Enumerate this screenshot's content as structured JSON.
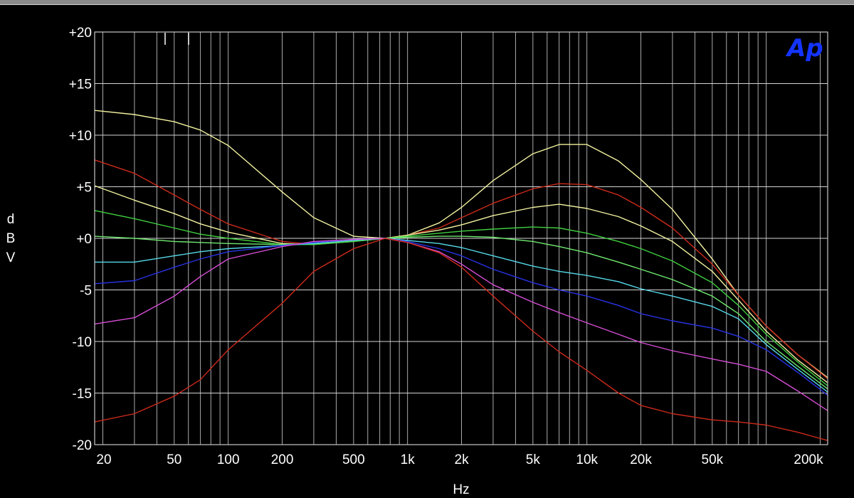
{
  "chart_data": {
    "type": "line",
    "xscale": "log",
    "x_range": [
      18,
      220000
    ],
    "y_range": [
      -20,
      20
    ],
    "grid": true,
    "xlabel": "Hz",
    "ylabel": [
      "d",
      "B",
      "V"
    ],
    "yticks": [
      {
        "v": 20,
        "label": "+20"
      },
      {
        "v": 15,
        "label": "+15"
      },
      {
        "v": 10,
        "label": "+10"
      },
      {
        "v": 5,
        "label": "+5"
      },
      {
        "v": 0,
        "label": "+0"
      },
      {
        "v": -5,
        "label": "-5"
      },
      {
        "v": -10,
        "label": "-10"
      },
      {
        "v": -15,
        "label": "-15"
      },
      {
        "v": -20,
        "label": "-20"
      }
    ],
    "xticks": [
      {
        "v": 20,
        "label": "20"
      },
      {
        "v": 50,
        "label": "50"
      },
      {
        "v": 100,
        "label": "100"
      },
      {
        "v": 200,
        "label": "200"
      },
      {
        "v": 500,
        "label": "500"
      },
      {
        "v": 1000,
        "label": "1k"
      },
      {
        "v": 2000,
        "label": "2k"
      },
      {
        "v": 5000,
        "label": "5k"
      },
      {
        "v": 10000,
        "label": "10k"
      },
      {
        "v": 20000,
        "label": "20k"
      },
      {
        "v": 50000,
        "label": "50k"
      },
      {
        "v": 200000,
        "label": "200k"
      }
    ],
    "logo": "Ap",
    "series": [
      {
        "color": "#f2f2a0",
        "points": [
          [
            18,
            12.4
          ],
          [
            30,
            12.0
          ],
          [
            50,
            11.3
          ],
          [
            70,
            10.5
          ],
          [
            100,
            9.0
          ],
          [
            200,
            4.5
          ],
          [
            300,
            2.0
          ],
          [
            500,
            0.2
          ],
          [
            750,
            0
          ],
          [
            1000,
            0.3
          ],
          [
            1500,
            1.5
          ],
          [
            2000,
            3.0
          ],
          [
            3000,
            5.6
          ],
          [
            5000,
            8.2
          ],
          [
            7000,
            9.1
          ],
          [
            10000,
            9.1
          ],
          [
            15000,
            7.5
          ],
          [
            20000,
            5.7
          ],
          [
            30000,
            2.8
          ],
          [
            50000,
            -2.0
          ],
          [
            70000,
            -5.5
          ],
          [
            100000,
            -8.5
          ],
          [
            150000,
            -11.3
          ],
          [
            220000,
            -13.5
          ]
        ]
      },
      {
        "color": "#cc2a1a",
        "points": [
          [
            18,
            7.6
          ],
          [
            30,
            6.3
          ],
          [
            50,
            4.2
          ],
          [
            70,
            2.8
          ],
          [
            100,
            1.4
          ],
          [
            200,
            -0.3
          ],
          [
            300,
            -0.6
          ],
          [
            500,
            -0.2
          ],
          [
            750,
            0
          ],
          [
            1000,
            0.3
          ],
          [
            1500,
            1.0
          ],
          [
            2000,
            2.0
          ],
          [
            3000,
            3.4
          ],
          [
            5000,
            4.8
          ],
          [
            7000,
            5.3
          ],
          [
            10000,
            5.2
          ],
          [
            15000,
            4.2
          ],
          [
            20000,
            3.0
          ],
          [
            30000,
            1.0
          ],
          [
            50000,
            -2.5
          ],
          [
            70000,
            -5.5
          ],
          [
            100000,
            -8.5
          ],
          [
            150000,
            -11.3
          ],
          [
            220000,
            -13.6
          ]
        ]
      },
      {
        "color": "#f2f2a0",
        "points": [
          [
            18,
            5.1
          ],
          [
            30,
            3.7
          ],
          [
            50,
            2.4
          ],
          [
            70,
            1.4
          ],
          [
            100,
            0.6
          ],
          [
            200,
            -0.5
          ],
          [
            300,
            -0.6
          ],
          [
            500,
            -0.3
          ],
          [
            750,
            0
          ],
          [
            1000,
            0.3
          ],
          [
            1500,
            0.8
          ],
          [
            2000,
            1.3
          ],
          [
            3000,
            2.2
          ],
          [
            5000,
            3.0
          ],
          [
            7000,
            3.3
          ],
          [
            10000,
            2.9
          ],
          [
            15000,
            2.1
          ],
          [
            20000,
            1.2
          ],
          [
            30000,
            -0.3
          ],
          [
            50000,
            -3.2
          ],
          [
            70000,
            -6.0
          ],
          [
            100000,
            -9.0
          ],
          [
            150000,
            -11.8
          ],
          [
            220000,
            -14.0
          ]
        ]
      },
      {
        "color": "#3fcf3f",
        "points": [
          [
            18,
            2.7
          ],
          [
            30,
            1.9
          ],
          [
            50,
            1.0
          ],
          [
            70,
            0.4
          ],
          [
            100,
            0
          ],
          [
            200,
            -0.6
          ],
          [
            300,
            -0.6
          ],
          [
            500,
            -0.3
          ],
          [
            750,
            0
          ],
          [
            1000,
            0.2
          ],
          [
            1500,
            0.5
          ],
          [
            2000,
            0.7
          ],
          [
            3000,
            0.9
          ],
          [
            5000,
            1.1
          ],
          [
            7000,
            1.0
          ],
          [
            10000,
            0.5
          ],
          [
            15000,
            -0.3
          ],
          [
            20000,
            -1.0
          ],
          [
            30000,
            -2.2
          ],
          [
            50000,
            -4.3
          ],
          [
            70000,
            -6.5
          ],
          [
            100000,
            -9.3
          ],
          [
            150000,
            -12.0
          ],
          [
            220000,
            -14.3
          ]
        ]
      },
      {
        "color": "#6ee86e",
        "points": [
          [
            18,
            0.2
          ],
          [
            30,
            0
          ],
          [
            50,
            -0.3
          ],
          [
            70,
            -0.4
          ],
          [
            100,
            -0.5
          ],
          [
            200,
            -0.6
          ],
          [
            300,
            -0.5
          ],
          [
            500,
            -0.2
          ],
          [
            750,
            0
          ],
          [
            1000,
            0.1
          ],
          [
            1500,
            0.2
          ],
          [
            2000,
            0.2
          ],
          [
            3000,
            0.1
          ],
          [
            5000,
            -0.3
          ],
          [
            7000,
            -0.8
          ],
          [
            10000,
            -1.4
          ],
          [
            15000,
            -2.3
          ],
          [
            20000,
            -3.0
          ],
          [
            30000,
            -4.0
          ],
          [
            50000,
            -5.6
          ],
          [
            70000,
            -7.3
          ],
          [
            100000,
            -10.0
          ],
          [
            150000,
            -12.4
          ],
          [
            220000,
            -14.6
          ]
        ]
      },
      {
        "color": "#55d8e8",
        "points": [
          [
            18,
            -2.3
          ],
          [
            30,
            -2.3
          ],
          [
            50,
            -1.7
          ],
          [
            70,
            -1.3
          ],
          [
            100,
            -1.0
          ],
          [
            200,
            -0.7
          ],
          [
            300,
            -0.5
          ],
          [
            500,
            -0.2
          ],
          [
            750,
            0
          ],
          [
            1000,
            -0.2
          ],
          [
            1500,
            -0.5
          ],
          [
            2000,
            -0.9
          ],
          [
            3000,
            -1.7
          ],
          [
            5000,
            -2.7
          ],
          [
            7000,
            -3.2
          ],
          [
            10000,
            -3.6
          ],
          [
            15000,
            -4.2
          ],
          [
            20000,
            -4.9
          ],
          [
            30000,
            -5.6
          ],
          [
            50000,
            -6.6
          ],
          [
            70000,
            -7.8
          ],
          [
            100000,
            -10.3
          ],
          [
            150000,
            -12.7
          ],
          [
            220000,
            -14.9
          ]
        ]
      },
      {
        "color": "#2833e6",
        "points": [
          [
            18,
            -4.4
          ],
          [
            30,
            -4.1
          ],
          [
            50,
            -2.8
          ],
          [
            70,
            -2.0
          ],
          [
            100,
            -1.3
          ],
          [
            200,
            -0.7
          ],
          [
            300,
            -0.4
          ],
          [
            500,
            -0.1
          ],
          [
            750,
            0
          ],
          [
            1000,
            -0.3
          ],
          [
            1500,
            -1.0
          ],
          [
            2000,
            -1.7
          ],
          [
            3000,
            -3.0
          ],
          [
            5000,
            -4.3
          ],
          [
            7000,
            -5.0
          ],
          [
            10000,
            -5.6
          ],
          [
            15000,
            -6.5
          ],
          [
            20000,
            -7.3
          ],
          [
            30000,
            -8.0
          ],
          [
            50000,
            -8.7
          ],
          [
            70000,
            -9.5
          ],
          [
            100000,
            -10.8
          ],
          [
            150000,
            -13.0
          ],
          [
            220000,
            -15.2
          ]
        ]
      },
      {
        "color": "#d64ed6",
        "points": [
          [
            18,
            -8.3
          ],
          [
            30,
            -7.7
          ],
          [
            50,
            -5.6
          ],
          [
            70,
            -3.7
          ],
          [
            100,
            -2.0
          ],
          [
            200,
            -0.8
          ],
          [
            300,
            -0.3
          ],
          [
            500,
            -0.1
          ],
          [
            750,
            0
          ],
          [
            1000,
            -0.4
          ],
          [
            1500,
            -1.3
          ],
          [
            2000,
            -2.5
          ],
          [
            3000,
            -4.5
          ],
          [
            5000,
            -6.2
          ],
          [
            7000,
            -7.2
          ],
          [
            10000,
            -8.2
          ],
          [
            15000,
            -9.3
          ],
          [
            20000,
            -10.1
          ],
          [
            30000,
            -10.9
          ],
          [
            50000,
            -11.7
          ],
          [
            70000,
            -12.2
          ],
          [
            100000,
            -12.9
          ],
          [
            150000,
            -14.8
          ],
          [
            220000,
            -16.7
          ]
        ]
      },
      {
        "color": "#cc2a1a",
        "points": [
          [
            18,
            -17.8
          ],
          [
            30,
            -17.0
          ],
          [
            50,
            -15.3
          ],
          [
            70,
            -13.7
          ],
          [
            100,
            -10.8
          ],
          [
            200,
            -6.3
          ],
          [
            300,
            -3.2
          ],
          [
            500,
            -1.0
          ],
          [
            750,
            0
          ],
          [
            1000,
            -0.4
          ],
          [
            1500,
            -1.4
          ],
          [
            2000,
            -2.8
          ],
          [
            3000,
            -5.6
          ],
          [
            5000,
            -9.0
          ],
          [
            7000,
            -11.0
          ],
          [
            10000,
            -12.8
          ],
          [
            15000,
            -15.0
          ],
          [
            20000,
            -16.2
          ],
          [
            30000,
            -17.0
          ],
          [
            50000,
            -17.6
          ],
          [
            70000,
            -17.8
          ],
          [
            100000,
            -18.1
          ],
          [
            150000,
            -18.8
          ],
          [
            220000,
            -19.6
          ]
        ]
      }
    ]
  }
}
